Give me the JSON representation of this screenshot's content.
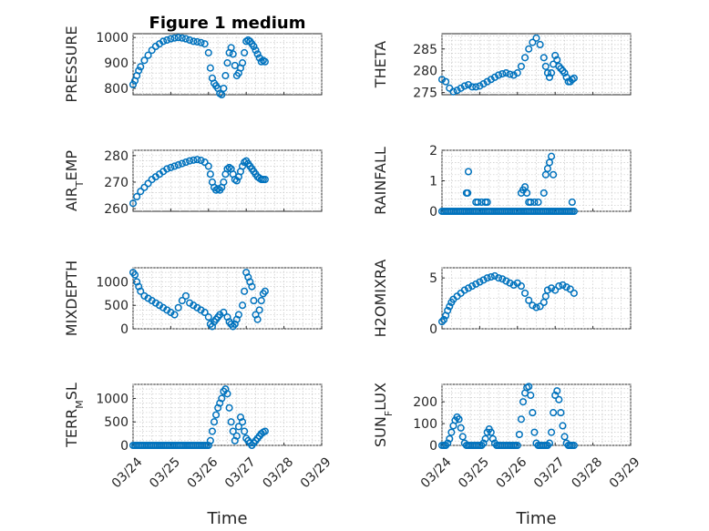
{
  "colors": {
    "marker": "#0072BD",
    "axis": "#262626",
    "grid": "#c8c8c8"
  },
  "chart_data": [
    {
      "type": "scatter",
      "title": "Figure 1 medium",
      "ylabel": "PRESSURE",
      "ylabel_sub": "",
      "ylabel_after": "",
      "xlabel": "",
      "ylim": [
        775,
        1015
      ],
      "yticks": [
        800,
        900,
        1000
      ],
      "xticks": [
        "03/24",
        "03/25",
        "03/26",
        "03/27",
        "03/28",
        "03/29"
      ],
      "show_xticklabels": false,
      "grid": true,
      "x": [
        0.0,
        0.05,
        0.1,
        0.15,
        0.2,
        0.3,
        0.4,
        0.5,
        0.6,
        0.7,
        0.8,
        0.9,
        1.0,
        1.1,
        1.2,
        1.3,
        1.4,
        1.5,
        1.6,
        1.7,
        1.8,
        1.9,
        2.0,
        2.05,
        2.1,
        2.15,
        2.2,
        2.25,
        2.3,
        2.35,
        2.4,
        2.45,
        2.5,
        2.55,
        2.6,
        2.65,
        2.7,
        2.75,
        2.8,
        2.85,
        2.9,
        2.95,
        3.0,
        3.05,
        3.1,
        3.15,
        3.2,
        3.25,
        3.3,
        3.35,
        3.4,
        3.45,
        3.5
      ],
      "y": [
        815,
        830,
        850,
        870,
        885,
        910,
        930,
        950,
        965,
        975,
        985,
        990,
        995,
        998,
        1000,
        998,
        995,
        990,
        985,
        983,
        980,
        975,
        940,
        880,
        840,
        820,
        810,
        800,
        780,
        775,
        800,
        850,
        900,
        940,
        960,
        935,
        890,
        850,
        860,
        880,
        900,
        940,
        985,
        990,
        985,
        975,
        965,
        950,
        935,
        920,
        905,
        910,
        905
      ]
    },
    {
      "type": "scatter",
      "title": "",
      "ylabel": "THETA",
      "ylabel_sub": "",
      "ylabel_after": "",
      "xlabel": "",
      "ylim": [
        274.5,
        288.5
      ],
      "yticks": [
        275,
        280,
        285
      ],
      "xticks": [
        "03/24",
        "03/25",
        "03/26",
        "03/27",
        "03/28",
        "03/29"
      ],
      "show_xticklabels": false,
      "grid": true,
      "x": [
        0.0,
        0.1,
        0.2,
        0.3,
        0.4,
        0.5,
        0.6,
        0.7,
        0.8,
        0.9,
        1.0,
        1.1,
        1.2,
        1.3,
        1.4,
        1.5,
        1.6,
        1.7,
        1.8,
        1.9,
        2.0,
        2.1,
        2.2,
        2.3,
        2.4,
        2.5,
        2.6,
        2.7,
        2.75,
        2.8,
        2.85,
        2.9,
        2.95,
        3.0,
        3.05,
        3.1,
        3.15,
        3.2,
        3.25,
        3.3,
        3.35,
        3.4,
        3.45,
        3.5
      ],
      "y": [
        278,
        277.5,
        276,
        275.2,
        275.5,
        276,
        276.5,
        276.8,
        276.3,
        276.3,
        276.5,
        277,
        277.5,
        278,
        278.5,
        279,
        279.3,
        279.5,
        279.2,
        279,
        279.5,
        281,
        283,
        285,
        286.5,
        287.5,
        286,
        283,
        281,
        279.5,
        278.5,
        279.5,
        281.5,
        283.5,
        282.5,
        281,
        280.5,
        280,
        279.5,
        278.5,
        277.5,
        277.5,
        278,
        278.3
      ]
    },
    {
      "type": "scatter",
      "title": "",
      "ylabel": "AIR",
      "ylabel_sub": "T",
      "ylabel_after": "EMP",
      "xlabel": "",
      "ylim": [
        259,
        282
      ],
      "yticks": [
        260,
        270,
        280
      ],
      "xticks": [
        "03/24",
        "03/25",
        "03/26",
        "03/27",
        "03/28",
        "03/29"
      ],
      "show_xticklabels": false,
      "grid": true,
      "x": [
        0.0,
        0.1,
        0.2,
        0.3,
        0.4,
        0.5,
        0.6,
        0.7,
        0.8,
        0.9,
        1.0,
        1.1,
        1.2,
        1.3,
        1.4,
        1.5,
        1.6,
        1.7,
        1.8,
        1.9,
        2.0,
        2.05,
        2.1,
        2.15,
        2.2,
        2.25,
        2.3,
        2.35,
        2.4,
        2.45,
        2.5,
        2.55,
        2.6,
        2.65,
        2.7,
        2.75,
        2.8,
        2.85,
        2.9,
        2.95,
        3.0,
        3.05,
        3.1,
        3.15,
        3.2,
        3.25,
        3.3,
        3.35,
        3.4,
        3.45,
        3.5
      ],
      "y": [
        262,
        264.5,
        266.5,
        268,
        269.5,
        271,
        272,
        273,
        274,
        275,
        275.5,
        276,
        276.5,
        277,
        277.5,
        278,
        278.3,
        278.5,
        278.2,
        277.5,
        276,
        273,
        270,
        268,
        267,
        267.5,
        267,
        268,
        270,
        273,
        275,
        275.5,
        275,
        273,
        271,
        270.5,
        272,
        274,
        276,
        277.5,
        278,
        277,
        276,
        275,
        274,
        273,
        272,
        271.5,
        271,
        271,
        271
      ]
    },
    {
      "type": "scatter",
      "title": "",
      "ylabel": "RAINFALL",
      "ylabel_sub": "",
      "ylabel_after": "",
      "xlabel": "",
      "ylim": [
        0,
        2
      ],
      "yticks": [
        0,
        1,
        2
      ],
      "xticks": [
        "03/24",
        "03/25",
        "03/26",
        "03/27",
        "03/28",
        "03/29"
      ],
      "show_xticklabels": false,
      "grid": true,
      "x": [
        0.0,
        0.05,
        0.1,
        0.15,
        0.2,
        0.25,
        0.3,
        0.35,
        0.4,
        0.45,
        0.5,
        0.55,
        0.6,
        0.65,
        0.7,
        0.75,
        0.8,
        0.85,
        0.9,
        0.95,
        1.0,
        1.05,
        1.1,
        1.15,
        1.2,
        1.25,
        1.3,
        1.35,
        1.4,
        1.45,
        1.5,
        1.55,
        1.6,
        1.65,
        1.7,
        1.75,
        1.8,
        1.85,
        1.9,
        1.95,
        2.0,
        2.05,
        2.1,
        2.15,
        2.2,
        2.25,
        2.3,
        2.35,
        2.4,
        2.45,
        2.5,
        2.55,
        2.6,
        2.65,
        2.7,
        2.75,
        2.8,
        2.85,
        2.9,
        2.95,
        3.0,
        3.05,
        3.1,
        3.15,
        3.2,
        3.25,
        3.3,
        3.35,
        3.4,
        3.45,
        3.5,
        0.65,
        0.7,
        0.68,
        0.9,
        0.95,
        1.05,
        1.15,
        1.2,
        2.1,
        2.15,
        2.2,
        2.25,
        2.3,
        2.35,
        2.45,
        2.55,
        2.7,
        2.75,
        2.8,
        2.85,
        2.9,
        2.95,
        3.45
      ],
      "y": [
        0,
        0,
        0,
        0,
        0,
        0,
        0,
        0,
        0,
        0,
        0,
        0,
        0,
        0,
        0,
        0,
        0,
        0,
        0,
        0,
        0,
        0,
        0,
        0,
        0,
        0,
        0,
        0,
        0,
        0,
        0,
        0,
        0,
        0,
        0,
        0,
        0,
        0,
        0,
        0,
        0,
        0,
        0,
        0,
        0,
        0,
        0,
        0,
        0,
        0,
        0,
        0,
        0,
        0,
        0,
        0,
        0,
        0,
        0,
        0,
        0,
        0,
        0,
        0,
        0,
        0,
        0,
        0,
        0,
        0,
        0,
        0.6,
        1.3,
        0.6,
        0.3,
        0.3,
        0.3,
        0.3,
        0.3,
        0.6,
        0.7,
        0.8,
        0.6,
        0.3,
        0.3,
        0.3,
        0.3,
        0.6,
        1.2,
        1.4,
        1.6,
        1.8,
        1.2,
        0.3
      ]
    },
    {
      "type": "scatter",
      "title": "",
      "ylabel": "MIXDEPTH",
      "ylabel_sub": "",
      "ylabel_after": "",
      "xlabel": "",
      "ylim": [
        0,
        1300
      ],
      "yticks": [
        0,
        500,
        1000
      ],
      "xticks": [
        "03/24",
        "03/25",
        "03/26",
        "03/27",
        "03/28",
        "03/29"
      ],
      "show_xticklabels": false,
      "grid": true,
      "x": [
        0.0,
        0.05,
        0.1,
        0.15,
        0.2,
        0.3,
        0.4,
        0.5,
        0.6,
        0.7,
        0.8,
        0.9,
        1.0,
        1.1,
        1.2,
        1.3,
        1.4,
        1.5,
        1.6,
        1.7,
        1.8,
        1.9,
        2.0,
        2.05,
        2.1,
        2.15,
        2.2,
        2.25,
        2.3,
        2.4,
        2.5,
        2.55,
        2.6,
        2.65,
        2.7,
        2.75,
        2.8,
        2.9,
        2.95,
        3.0,
        3.05,
        3.1,
        3.15,
        3.2,
        3.25,
        3.3,
        3.35,
        3.4,
        3.45,
        3.5
      ],
      "y": [
        1200,
        1150,
        1000,
        900,
        800,
        700,
        650,
        600,
        550,
        500,
        450,
        400,
        350,
        300,
        450,
        600,
        700,
        550,
        500,
        450,
        400,
        350,
        250,
        100,
        50,
        150,
        200,
        250,
        300,
        350,
        250,
        150,
        100,
        50,
        100,
        200,
        300,
        500,
        800,
        1200,
        1100,
        1000,
        900,
        600,
        300,
        200,
        400,
        600,
        750,
        800
      ]
    },
    {
      "type": "scatter",
      "title": "",
      "ylabel": "H2OMIXRA",
      "ylabel_sub": "",
      "ylabel_after": "",
      "xlabel": "",
      "ylim": [
        0,
        6
      ],
      "yticks": [
        0,
        5
      ],
      "xticks": [
        "03/24",
        "03/25",
        "03/26",
        "03/27",
        "03/28",
        "03/29"
      ],
      "show_xticklabels": false,
      "grid": true,
      "x": [
        0.0,
        0.05,
        0.1,
        0.15,
        0.2,
        0.25,
        0.3,
        0.4,
        0.5,
        0.6,
        0.7,
        0.8,
        0.9,
        1.0,
        1.1,
        1.2,
        1.3,
        1.4,
        1.5,
        1.6,
        1.7,
        1.8,
        1.9,
        2.0,
        2.1,
        2.2,
        2.3,
        2.4,
        2.5,
        2.6,
        2.7,
        2.75,
        2.8,
        2.9,
        3.0,
        3.1,
        3.2,
        3.3,
        3.4,
        3.5
      ],
      "y": [
        0.7,
        0.9,
        1.3,
        1.8,
        2.2,
        2.6,
        2.9,
        3.2,
        3.5,
        3.8,
        4.0,
        4.2,
        4.4,
        4.6,
        4.8,
        5.0,
        5.1,
        5.2,
        5.0,
        4.9,
        4.7,
        4.5,
        4.3,
        4.5,
        4.2,
        3.5,
        2.8,
        2.3,
        2.1,
        2.2,
        2.6,
        3.2,
        3.8,
        4.0,
        3.8,
        4.2,
        4.3,
        4.1,
        3.9,
        3.5
      ]
    },
    {
      "type": "scatter",
      "title": "",
      "ylabel": "TERR",
      "ylabel_sub": "M",
      "ylabel_after": "SL",
      "xlabel": "Time",
      "ylim": [
        0,
        1300
      ],
      "yticks": [
        0,
        500,
        1000
      ],
      "xticks": [
        "03/24",
        "03/25",
        "03/26",
        "03/27",
        "03/28",
        "03/29"
      ],
      "show_xticklabels": true,
      "grid": true,
      "x": [
        0.0,
        0.05,
        0.1,
        0.15,
        0.2,
        0.25,
        0.3,
        0.35,
        0.4,
        0.45,
        0.5,
        0.55,
        0.6,
        0.65,
        0.7,
        0.75,
        0.8,
        0.85,
        0.9,
        0.95,
        1.0,
        1.05,
        1.1,
        1.15,
        1.2,
        1.25,
        1.3,
        1.35,
        1.4,
        1.45,
        1.5,
        1.55,
        1.6,
        1.65,
        1.7,
        1.75,
        1.8,
        1.85,
        1.9,
        1.95,
        2.0,
        2.05,
        2.1,
        2.15,
        2.2,
        2.25,
        2.3,
        2.35,
        2.4,
        2.45,
        2.5,
        2.55,
        2.6,
        2.65,
        2.7,
        2.75,
        2.8,
        2.85,
        2.9,
        2.95,
        3.0,
        3.05,
        3.1,
        3.15,
        3.2,
        3.25,
        3.3,
        3.35,
        3.4,
        3.45,
        3.5
      ],
      "y": [
        0,
        0,
        0,
        0,
        0,
        0,
        0,
        0,
        0,
        0,
        0,
        0,
        0,
        0,
        0,
        0,
        0,
        0,
        0,
        0,
        0,
        0,
        0,
        0,
        0,
        0,
        0,
        0,
        0,
        0,
        0,
        0,
        0,
        0,
        0,
        0,
        0,
        0,
        0,
        0,
        0,
        100,
        300,
        500,
        650,
        800,
        900,
        1000,
        1150,
        1200,
        1100,
        800,
        500,
        300,
        100,
        200,
        400,
        600,
        500,
        300,
        150,
        100,
        50,
        0,
        50,
        100,
        150,
        200,
        250,
        280,
        300
      ]
    },
    {
      "type": "scatter",
      "title": "",
      "ylabel": "SUN",
      "ylabel_sub": "F",
      "ylabel_after": "LUX",
      "xlabel": "Time",
      "ylim": [
        0,
        280
      ],
      "yticks": [
        0,
        100,
        200
      ],
      "xticks": [
        "03/24",
        "03/25",
        "03/26",
        "03/27",
        "03/28",
        "03/29"
      ],
      "show_xticklabels": true,
      "grid": true,
      "x": [
        0.0,
        0.05,
        0.1,
        0.15,
        0.2,
        0.25,
        0.3,
        0.35,
        0.4,
        0.45,
        0.5,
        0.55,
        0.6,
        0.65,
        0.7,
        0.75,
        0.8,
        0.85,
        0.9,
        0.95,
        1.0,
        1.05,
        1.1,
        1.15,
        1.2,
        1.25,
        1.3,
        1.35,
        1.4,
        1.45,
        1.5,
        1.55,
        1.6,
        1.65,
        1.7,
        1.75,
        1.8,
        1.85,
        1.9,
        1.95,
        2.0,
        2.05,
        2.1,
        2.15,
        2.2,
        2.25,
        2.3,
        2.35,
        2.4,
        2.45,
        2.5,
        2.55,
        2.6,
        2.65,
        2.7,
        2.75,
        2.8,
        2.85,
        2.9,
        2.95,
        3.0,
        3.05,
        3.1,
        3.15,
        3.2,
        3.25,
        3.3,
        3.35,
        3.4,
        3.45,
        3.5
      ],
      "y": [
        0,
        0,
        0,
        10,
        30,
        60,
        90,
        115,
        130,
        120,
        80,
        40,
        10,
        0,
        0,
        0,
        0,
        0,
        0,
        0,
        0,
        0,
        10,
        30,
        60,
        75,
        60,
        30,
        10,
        0,
        0,
        0,
        0,
        0,
        0,
        0,
        0,
        0,
        0,
        0,
        0,
        50,
        120,
        200,
        240,
        265,
        270,
        230,
        150,
        60,
        10,
        0,
        0,
        0,
        0,
        0,
        0,
        10,
        60,
        150,
        230,
        250,
        210,
        150,
        90,
        40,
        10,
        0,
        0,
        0,
        0
      ]
    }
  ]
}
